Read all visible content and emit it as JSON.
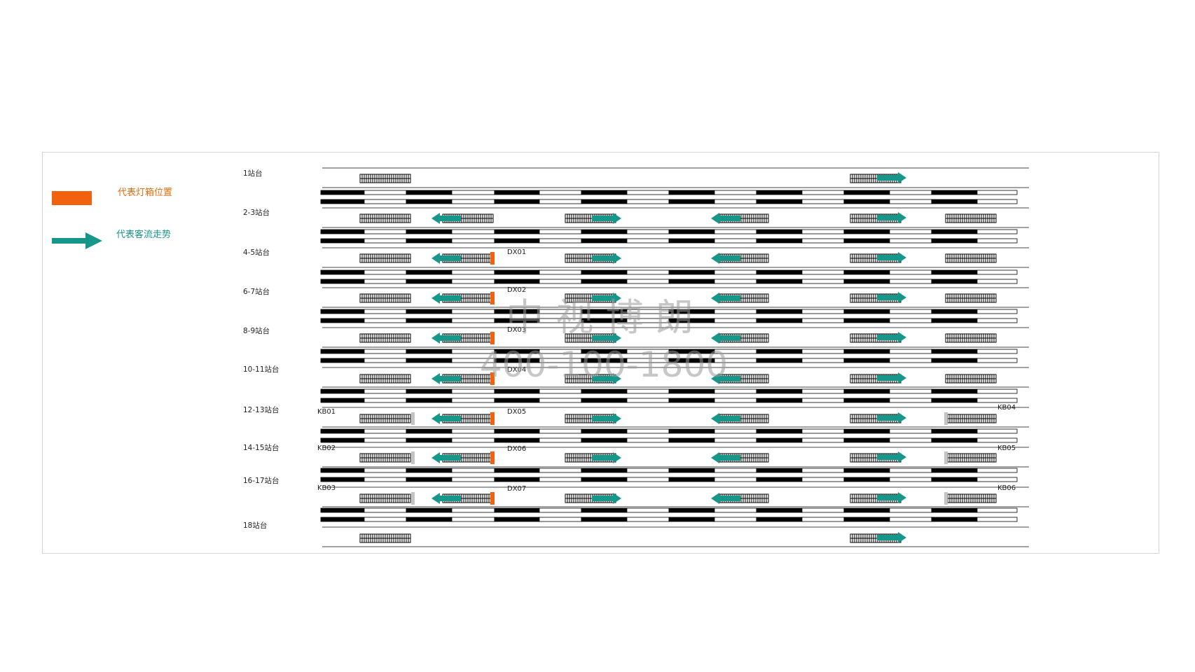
{
  "legend": {
    "lightbox_label": "代表灯箱位置",
    "flow_label": "代表客流走势",
    "lightbox_color": "#f2620e",
    "flow_color": "#17978a",
    "signage_color": "#c4c4c4"
  },
  "platforms": [
    "1站台",
    "2-3站台",
    "4-5站台",
    "6-7站台",
    "8-9站台",
    "10-11站台",
    "12-13站台",
    "14-15站台",
    "16-17站台",
    "18站台"
  ],
  "lightbox_codes": [
    "DX01",
    "DX02",
    "DX03",
    "DX04",
    "DX05",
    "DX06",
    "DX07"
  ],
  "signage_codes_left": [
    "KB01",
    "KB02",
    "KB03"
  ],
  "signage_codes_right": [
    "KB04",
    "KB05",
    "KB06"
  ],
  "watermark": {
    "line1": "中 视 博 朗",
    "line2": "400-100-1800"
  }
}
